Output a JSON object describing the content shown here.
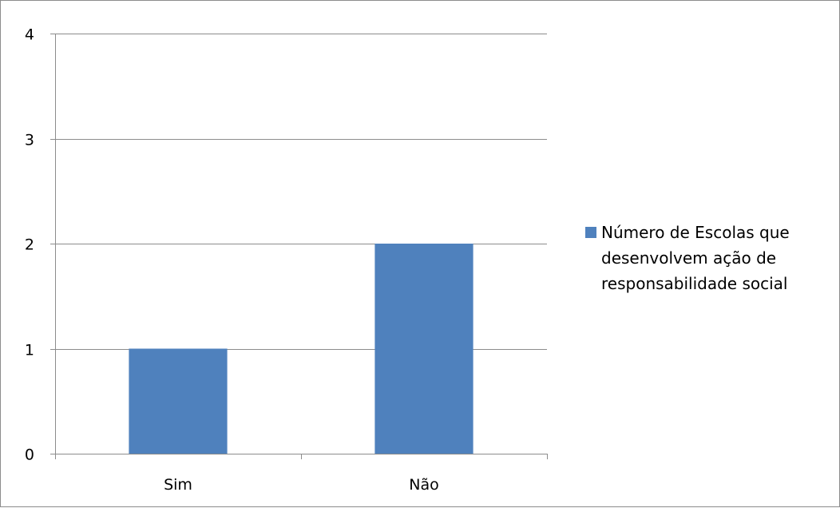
{
  "chart_data": {
    "type": "bar",
    "categories": [
      "Sim",
      "Não"
    ],
    "series": [
      {
        "name": "Número de Escolas que desenvolvem ação de responsabilidade social",
        "values": [
          1,
          2
        ]
      }
    ],
    "title": "",
    "xlabel": "",
    "ylabel": "",
    "ylim": [
      0,
      4
    ],
    "yticks": [
      "0",
      "1",
      "2",
      "3",
      "4"
    ],
    "grid": true,
    "legend_position": "right",
    "colors": {
      "bar": "#4f81bd",
      "grid": "#8c8c8c",
      "axis": "#8c8c8c",
      "frame": "#8c8c8c"
    }
  }
}
